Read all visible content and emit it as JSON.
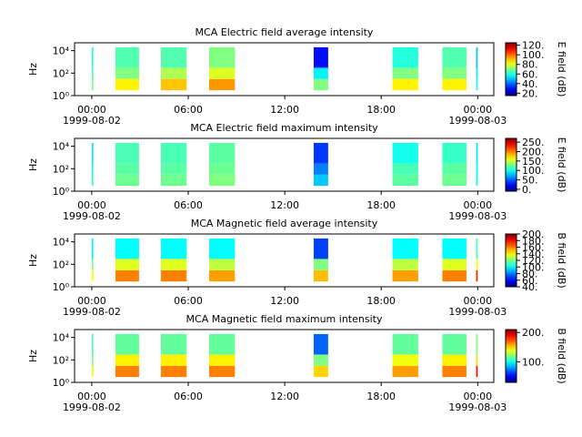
{
  "chart_data": [
    {
      "type": "spectrogram",
      "title": "MCA  Electric field average intensity",
      "ylabel": "Hz",
      "xlim": [
        -1.07,
        25.0
      ],
      "xticks": [
        {
          "value": 0,
          "label": "00:00"
        },
        {
          "value": 6,
          "label": "06:00"
        },
        {
          "value": 12,
          "label": "12:00"
        },
        {
          "value": 18,
          "label": "18:00"
        },
        {
          "value": 24,
          "label": "00:00"
        }
      ],
      "date_labels": [
        {
          "value": 0,
          "label": "1999-08-02"
        },
        {
          "value": 24,
          "label": "1999-08-03"
        }
      ],
      "ylim": [
        1,
        50000
      ],
      "log_y": true,
      "yticks": [
        {
          "value": 1,
          "label": "10⁰"
        },
        {
          "value": 100,
          "label": "10²"
        },
        {
          "value": 10000,
          "label": "10⁴"
        }
      ],
      "band_edges": [
        3,
        30,
        300,
        20000
      ],
      "segments": [
        {
          "start": 0.0,
          "end": 0.1,
          "values": [
            70,
            65,
            60
          ]
        },
        {
          "start": 1.47,
          "end": 2.94,
          "values": [
            85,
            70,
            65
          ]
        },
        {
          "start": 4.3,
          "end": 5.9,
          "values": [
            90,
            75,
            65
          ]
        },
        {
          "start": 7.3,
          "end": 8.9,
          "values": [
            95,
            80,
            70
          ]
        },
        {
          "start": 13.8,
          "end": 14.7,
          "values": [
            70,
            55,
            30
          ]
        },
        {
          "start": 18.7,
          "end": 20.3,
          "values": [
            85,
            70,
            60
          ]
        },
        {
          "start": 21.8,
          "end": 23.3,
          "values": [
            85,
            70,
            65
          ]
        },
        {
          "start": 23.9,
          "end": 24.0,
          "values": [
            60,
            55,
            50
          ]
        }
      ],
      "clim": [
        15,
        125
      ],
      "cticks": [
        {
          "value": 20,
          "label": "20."
        },
        {
          "value": 40,
          "label": "40."
        },
        {
          "value": 60,
          "label": "60."
        },
        {
          "value": 80,
          "label": "80."
        },
        {
          "value": 100,
          "label": "100."
        },
        {
          "value": 120,
          "label": "120."
        }
      ],
      "clabel": "E field (dB)"
    },
    {
      "type": "spectrogram",
      "title": "MCA  Electric field maximum intensity",
      "ylabel": "Hz",
      "xlim": [
        -1.07,
        25.0
      ],
      "xticks": [
        {
          "value": 0,
          "label": "00:00"
        },
        {
          "value": 6,
          "label": "06:00"
        },
        {
          "value": 12,
          "label": "12:00"
        },
        {
          "value": 18,
          "label": "18:00"
        },
        {
          "value": 24,
          "label": "00:00"
        }
      ],
      "date_labels": [
        {
          "value": 0,
          "label": "1999-08-02"
        },
        {
          "value": 24,
          "label": "1999-08-03"
        }
      ],
      "ylim": [
        1,
        50000
      ],
      "log_y": true,
      "yticks": [
        {
          "value": 1,
          "label": "10⁰"
        },
        {
          "value": 100,
          "label": "10²"
        },
        {
          "value": 10000,
          "label": "10⁴"
        }
      ],
      "band_edges": [
        3,
        30,
        300,
        20000
      ],
      "segments": [
        {
          "start": 0.0,
          "end": 0.1,
          "values": [
            110,
            100,
            90
          ]
        },
        {
          "start": 1.47,
          "end": 2.94,
          "values": [
            125,
            120,
            115
          ]
        },
        {
          "start": 4.3,
          "end": 5.9,
          "values": [
            125,
            120,
            115
          ]
        },
        {
          "start": 7.3,
          "end": 8.9,
          "values": [
            130,
            125,
            120
          ]
        },
        {
          "start": 13.8,
          "end": 14.7,
          "values": [
            80,
            60,
            40
          ]
        },
        {
          "start": 18.7,
          "end": 20.3,
          "values": [
            120,
            115,
            100
          ]
        },
        {
          "start": 21.8,
          "end": 23.3,
          "values": [
            125,
            120,
            110
          ]
        },
        {
          "start": 23.9,
          "end": 24.0,
          "values": [
            100,
            95,
            90
          ]
        }
      ],
      "clim": [
        -10,
        270
      ],
      "cticks": [
        {
          "value": 0,
          "label": "0."
        },
        {
          "value": 50,
          "label": "50."
        },
        {
          "value": 100,
          "label": "100."
        },
        {
          "value": 150,
          "label": "150."
        },
        {
          "value": 200,
          "label": "200."
        },
        {
          "value": 250,
          "label": "250."
        }
      ],
      "clabel": "E field (dB)"
    },
    {
      "type": "spectrogram",
      "title": "MCA  Magnetic field average intensity",
      "ylabel": "Hz",
      "xlim": [
        -1.07,
        25.0
      ],
      "xticks": [
        {
          "value": 0,
          "label": "00:00"
        },
        {
          "value": 6,
          "label": "06:00"
        },
        {
          "value": 12,
          "label": "12:00"
        },
        {
          "value": 18,
          "label": "18:00"
        },
        {
          "value": 24,
          "label": "00:00"
        }
      ],
      "date_labels": [
        {
          "value": 0,
          "label": "1999-08-02"
        },
        {
          "value": 24,
          "label": "1999-08-03"
        }
      ],
      "ylim": [
        1,
        50000
      ],
      "log_y": true,
      "yticks": [
        {
          "value": 1,
          "label": "10⁰"
        },
        {
          "value": 100,
          "label": "10²"
        },
        {
          "value": 10000,
          "label": "10⁴"
        }
      ],
      "band_edges": [
        3,
        30,
        300,
        20000
      ],
      "segments": [
        {
          "start": 0.0,
          "end": 0.1,
          "values": [
            140,
            120,
            100
          ]
        },
        {
          "start": 1.47,
          "end": 2.94,
          "values": [
            160,
            135,
            100
          ]
        },
        {
          "start": 4.3,
          "end": 5.9,
          "values": [
            160,
            135,
            100
          ]
        },
        {
          "start": 7.3,
          "end": 8.9,
          "values": [
            155,
            130,
            100
          ]
        },
        {
          "start": 13.8,
          "end": 14.7,
          "values": [
            150,
            120,
            70
          ]
        },
        {
          "start": 18.7,
          "end": 20.3,
          "values": [
            155,
            130,
            100
          ]
        },
        {
          "start": 21.8,
          "end": 23.3,
          "values": [
            160,
            135,
            100
          ]
        },
        {
          "start": 23.9,
          "end": 24.0,
          "values": [
            175,
            140,
            110
          ]
        }
      ],
      "clim": [
        40,
        200
      ],
      "cticks": [
        {
          "value": 40,
          "label": "40."
        },
        {
          "value": 60,
          "label": "60."
        },
        {
          "value": 80,
          "label": "80."
        },
        {
          "value": 100,
          "label": "100."
        },
        {
          "value": 120,
          "label": "120."
        },
        {
          "value": 140,
          "label": "140."
        },
        {
          "value": 160,
          "label": "160."
        },
        {
          "value": 180,
          "label": "180."
        },
        {
          "value": 200,
          "label": "200."
        }
      ],
      "clabel": "B field (dB)"
    },
    {
      "type": "spectrogram",
      "title": "MCA  Magnetic field maximum intensity",
      "ylabel": "Hz",
      "xlim": [
        -1.07,
        25.0
      ],
      "xticks": [
        {
          "value": 0,
          "label": "00:00"
        },
        {
          "value": 6,
          "label": "06:00"
        },
        {
          "value": 12,
          "label": "12:00"
        },
        {
          "value": 18,
          "label": "18:00"
        },
        {
          "value": 24,
          "label": "00:00"
        }
      ],
      "date_labels": [
        {
          "value": 0,
          "label": "1999-08-02"
        },
        {
          "value": 24,
          "label": "1999-08-03"
        }
      ],
      "ylim": [
        1,
        50000
      ],
      "log_y": true,
      "yticks": [
        {
          "value": 1,
          "label": "10⁰"
        },
        {
          "value": 100,
          "label": "10²"
        },
        {
          "value": 10000,
          "label": "10⁴"
        }
      ],
      "band_edges": [
        3,
        30,
        300,
        20000
      ],
      "segments": [
        {
          "start": 0.0,
          "end": 0.1,
          "values": [
            140,
            120,
            110
          ]
        },
        {
          "start": 1.47,
          "end": 2.94,
          "values": [
            165,
            145,
            115
          ]
        },
        {
          "start": 4.3,
          "end": 5.9,
          "values": [
            165,
            145,
            115
          ]
        },
        {
          "start": 7.3,
          "end": 8.9,
          "values": [
            165,
            145,
            115
          ]
        },
        {
          "start": 13.8,
          "end": 14.7,
          "values": [
            150,
            120,
            70
          ]
        },
        {
          "start": 18.7,
          "end": 20.3,
          "values": [
            160,
            140,
            115
          ]
        },
        {
          "start": 21.8,
          "end": 23.3,
          "values": [
            165,
            145,
            115
          ]
        },
        {
          "start": 23.9,
          "end": 24.0,
          "values": [
            185,
            150,
            120
          ]
        }
      ],
      "clim": [
        30,
        210
      ],
      "cticks": [
        {
          "value": 100,
          "label": "100."
        },
        {
          "value": 200,
          "label": "200."
        }
      ],
      "clabel": "B field (dB)"
    }
  ]
}
